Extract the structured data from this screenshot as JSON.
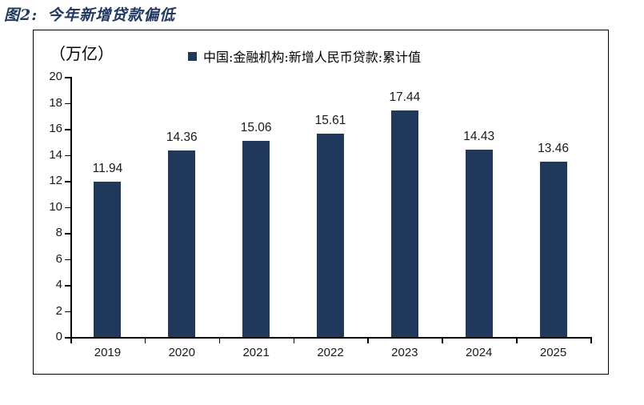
{
  "header": {
    "figure_label": "图2:",
    "figure_title": "今年新增贷款偏低"
  },
  "chart": {
    "unit_label": "（万亿）",
    "legend_label": "中国:金融机构:新增人民币贷款:累计值"
  },
  "chart_data": {
    "type": "bar",
    "title": "图2: 今年新增贷款偏低",
    "series_name": "中国:金融机构:新增人民币贷款:累计值",
    "categories": [
      "2019",
      "2020",
      "2021",
      "2022",
      "2023",
      "2024",
      "2025"
    ],
    "values": [
      11.94,
      14.36,
      15.06,
      15.61,
      17.44,
      14.43,
      13.46
    ],
    "xlabel": "",
    "ylabel": "（万亿）",
    "ylim": [
      0,
      20
    ],
    "ytick_step": 2,
    "grid": false,
    "legend_position": "top",
    "data_labels": true
  },
  "colors": {
    "title": "#1f3864",
    "bar": "#20385c",
    "axis": "#000000",
    "label_text": "#1a1a1a"
  }
}
